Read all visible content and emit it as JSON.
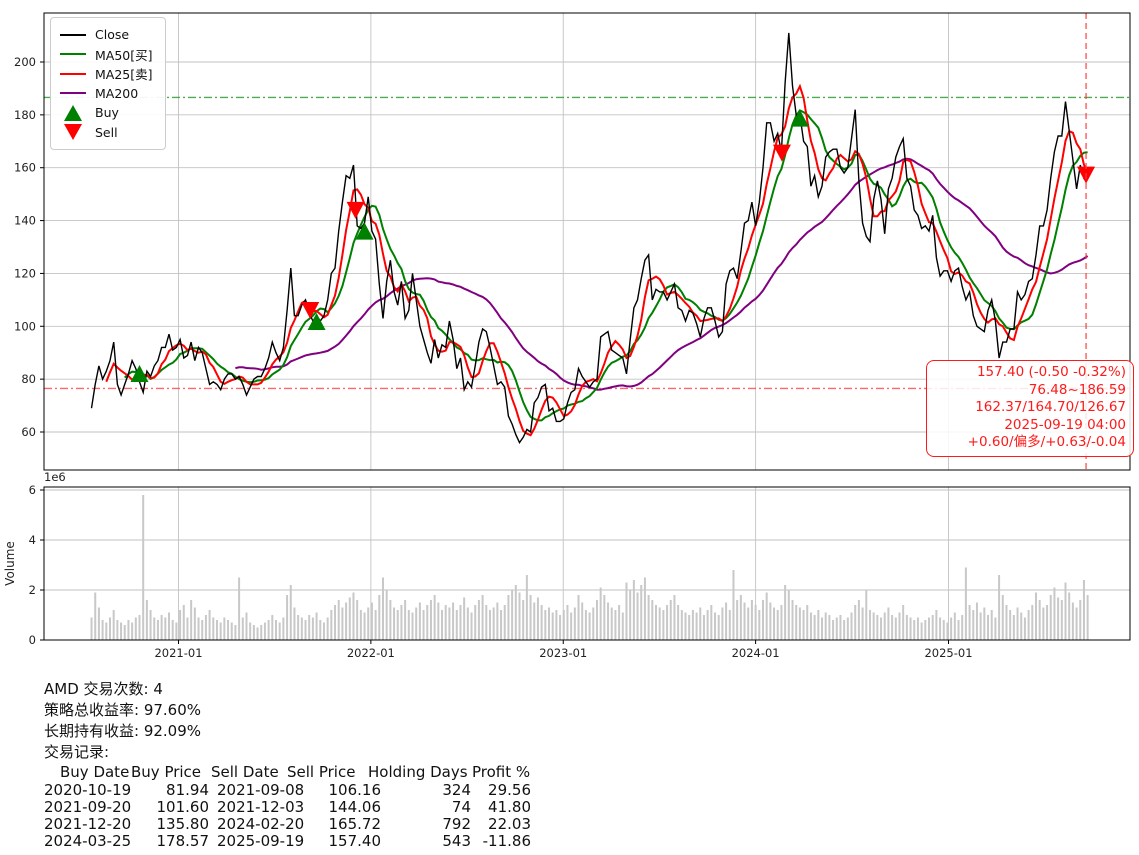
{
  "chart_data": {
    "type": "line",
    "symbol": "AMD",
    "series_start_date": "2020-07-20",
    "interval_days": 7,
    "close": [
      69,
      78,
      85,
      80,
      83,
      87,
      94,
      78,
      74,
      78,
      82,
      87,
      84,
      79,
      75,
      83,
      81,
      85,
      87,
      92,
      92,
      97,
      91,
      92,
      95,
      88,
      89,
      94,
      87,
      92,
      90,
      84,
      78,
      79,
      78,
      76,
      80,
      82,
      82,
      80,
      81,
      78,
      74,
      77,
      80,
      81,
      81,
      84,
      88,
      94,
      90,
      87,
      92,
      106,
      122,
      104,
      104,
      108,
      110,
      105,
      102,
      104,
      102,
      104,
      110,
      120,
      122,
      136,
      147,
      157,
      156,
      161,
      138,
      137,
      139,
      149,
      136,
      133,
      116,
      103,
      117,
      125,
      113,
      108,
      117,
      103,
      106,
      120,
      110,
      100,
      95,
      90,
      86,
      95,
      88,
      93,
      92,
      102,
      95,
      84,
      88,
      76,
      79,
      77,
      85,
      94,
      99,
      98,
      92,
      85,
      78,
      79,
      77,
      66,
      63,
      59,
      56,
      58,
      61,
      60,
      71,
      73,
      77,
      78,
      68,
      69,
      64,
      64,
      65,
      71,
      75,
      76,
      84,
      81,
      79,
      77,
      79,
      80,
      96,
      97,
      98,
      91,
      90,
      89,
      88,
      82,
      95,
      107,
      110,
      118,
      125,
      127,
      110,
      114,
      113,
      113,
      110,
      113,
      116,
      107,
      106,
      102,
      106,
      105,
      101,
      96,
      103,
      107,
      107,
      102,
      96,
      98,
      116,
      121,
      122,
      118,
      128,
      139,
      140,
      147,
      138,
      147,
      160,
      177,
      177,
      170,
      173,
      166,
      192,
      211,
      191,
      180,
      180,
      170,
      168,
      153,
      157,
      149,
      153,
      164,
      166,
      167,
      167,
      160,
      158,
      160,
      171,
      182,
      155,
      139,
      134,
      132,
      148,
      155,
      148,
      135,
      152,
      156,
      164,
      168,
      171,
      156,
      153,
      144,
      142,
      137,
      138,
      136,
      142,
      126,
      119,
      121,
      121,
      117,
      121,
      122,
      115,
      110,
      113,
      104,
      100,
      99,
      98,
      106,
      110,
      102,
      88,
      94,
      94,
      99,
      99,
      113,
      110,
      112,
      117,
      118,
      127,
      138,
      138,
      144,
      156,
      166,
      172,
      172,
      185,
      174,
      163,
      152,
      161,
      156,
      157.4
    ],
    "volume_millions": [
      0.9,
      1.9,
      1.3,
      0.8,
      0.7,
      0.9,
      1.2,
      0.8,
      0.7,
      0.6,
      0.8,
      0.7,
      0.9,
      1.0,
      5.8,
      1.6,
      1.2,
      0.9,
      0.8,
      1.0,
      0.9,
      1.1,
      0.8,
      0.7,
      1.2,
      1.4,
      0.9,
      1.6,
      1.3,
      0.9,
      0.8,
      1.0,
      1.2,
      0.9,
      0.8,
      0.7,
      0.9,
      0.8,
      0.7,
      0.6,
      2.5,
      0.9,
      1.1,
      0.7,
      0.6,
      0.5,
      0.6,
      0.7,
      0.8,
      1.0,
      0.8,
      0.7,
      0.9,
      1.8,
      2.2,
      1.3,
      1.0,
      0.9,
      0.8,
      1.0,
      0.9,
      1.1,
      0.8,
      0.7,
      0.9,
      1.2,
      1.4,
      1.6,
      1.3,
      1.5,
      1.7,
      1.9,
      1.6,
      1.2,
      1.1,
      1.3,
      1.5,
      1.2,
      1.8,
      2.5,
      2.0,
      1.6,
      1.3,
      1.2,
      1.4,
      1.6,
      1.2,
      1.1,
      1.3,
      1.5,
      1.2,
      1.4,
      1.6,
      1.8,
      1.5,
      1.2,
      1.4,
      1.3,
      1.5,
      1.2,
      1.4,
      1.7,
      1.3,
      1.1,
      1.4,
      1.6,
      1.8,
      1.4,
      1.2,
      1.3,
      1.5,
      1.2,
      1.4,
      1.8,
      2.0,
      2.2,
      1.9,
      1.6,
      2.6,
      1.8,
      1.5,
      1.7,
      1.4,
      1.2,
      1.3,
      1.1,
      1.2,
      1.0,
      1.2,
      1.4,
      1.1,
      1.3,
      1.8,
      1.5,
      1.2,
      1.1,
      1.3,
      1.6,
      2.1,
      1.8,
      1.5,
      1.3,
      1.2,
      1.4,
      1.1,
      2.3,
      2.0,
      2.4,
      1.9,
      2.2,
      2.5,
      1.8,
      1.6,
      1.4,
      1.3,
      1.2,
      1.4,
      1.6,
      1.8,
      1.4,
      1.2,
      1.1,
      1.0,
      1.2,
      1.1,
      1.3,
      1.0,
      1.2,
      1.4,
      1.1,
      1.0,
      1.3,
      1.5,
      1.2,
      2.8,
      1.6,
      1.8,
      1.5,
      1.3,
      1.6,
      1.4,
      1.2,
      1.6,
      1.9,
      1.5,
      1.3,
      1.2,
      1.4,
      2.2,
      2.0,
      1.6,
      1.4,
      1.3,
      1.2,
      1.4,
      1.1,
      1.0,
      1.2,
      0.9,
      1.1,
      1.0,
      0.8,
      0.9,
      1.0,
      0.8,
      0.9,
      1.1,
      1.4,
      1.6,
      1.3,
      2.0,
      1.2,
      1.1,
      1.0,
      0.9,
      1.1,
      1.3,
      1.0,
      0.9,
      1.1,
      1.4,
      1.0,
      0.9,
      0.8,
      0.9,
      0.7,
      0.8,
      0.9,
      1.0,
      1.2,
      0.9,
      0.8,
      0.7,
      0.9,
      1.1,
      0.8,
      1.0,
      2.9,
      1.4,
      1.2,
      1.5,
      1.1,
      1.3,
      1.0,
      1.2,
      0.9,
      2.6,
      1.8,
      1.4,
      1.2,
      1.0,
      1.3,
      1.1,
      0.9,
      1.2,
      1.4,
      1.9,
      1.6,
      1.3,
      1.4,
      1.8,
      2.1,
      1.7,
      1.6,
      2.3,
      1.9,
      1.5,
      1.3,
      1.6,
      2.4,
      1.8
    ],
    "ma_windows": {
      "MA25": 5,
      "MA50": 10,
      "MA200": 40
    },
    "x_ticks": [
      {
        "label": "2021-01",
        "date": "2021-01-01"
      },
      {
        "label": "2022-01",
        "date": "2022-01-01"
      },
      {
        "label": "2023-01",
        "date": "2023-01-01"
      },
      {
        "label": "2024-01",
        "date": "2024-01-01"
      },
      {
        "label": "2025-01",
        "date": "2025-01-01"
      }
    ],
    "price_axis": {
      "ticks": [
        60,
        80,
        100,
        120,
        140,
        160,
        180,
        200
      ],
      "range": [
        45.6,
        218.5
      ]
    },
    "volume_axis": {
      "ticks": [
        0,
        2,
        4,
        6
      ],
      "offset_label": "1e6",
      "ylabel": "Volume",
      "range": [
        0,
        6
      ]
    },
    "reference_lines": {
      "high": 186.59,
      "low": 76.48,
      "last_date": "2025-09-19"
    },
    "buy_signals": [
      {
        "date": "2020-10-19",
        "price": 81.94
      },
      {
        "date": "2021-09-20",
        "price": 101.6
      },
      {
        "date": "2021-12-20",
        "price": 135.8
      },
      {
        "date": "2024-03-25",
        "price": 178.57
      }
    ],
    "sell_signals": [
      {
        "date": "2021-09-08",
        "price": 106.16
      },
      {
        "date": "2021-12-03",
        "price": 144.06
      },
      {
        "date": "2024-02-20",
        "price": 165.72
      },
      {
        "date": "2025-09-19",
        "price": 157.4
      }
    ],
    "colors": {
      "close": "#000000",
      "ma50": "#008000",
      "ma25": "#ff0000",
      "ma200": "#800080",
      "buy": "#008000",
      "sell": "#ff0000",
      "volume_bar": "#c8c8c8",
      "grid": "#c2c2c2",
      "high_line": "#2e9e2e",
      "low_line": "#ff4d4d",
      "crosshair": "#ff3b3b"
    },
    "legend_position": "upper-left",
    "grid": true
  },
  "legend": {
    "items": [
      {
        "label": "Close",
        "color": "#000000",
        "type": "line"
      },
      {
        "label": "MA50[买]",
        "color": "#008000",
        "type": "line"
      },
      {
        "label": "MA25[卖]",
        "color": "#ff0000",
        "type": "line"
      },
      {
        "label": "MA200",
        "color": "#800080",
        "type": "line"
      },
      {
        "label": "Buy",
        "color": "#008000",
        "type": "triangle-up"
      },
      {
        "label": "Sell",
        "color": "#ff0000",
        "type": "triangle-down"
      }
    ]
  },
  "annotation": {
    "lines": [
      "157.40 (-0.50 -0.32%)",
      "76.48~186.59",
      "162.37/164.70/126.67",
      "2025-09-19 04:00",
      "+0.60/偏多/+0.63/-0.04"
    ],
    "color": "#ff1a1a"
  },
  "summary": {
    "line1": "AMD 交易次数: 4",
    "line2": "策略总收益率: 97.60%",
    "line3": "长期持有收益: 92.09%",
    "line4": "交易记录:"
  },
  "trades": {
    "headers": {
      "buy_date": "Buy Date",
      "buy_price": "Buy Price",
      "sell_date": "Sell Date",
      "sell_price": "Sell Price",
      "holding_days": "Holding Days",
      "profit_pct": "Profit %"
    },
    "rows": [
      {
        "buy_date": "2020-10-19",
        "buy_price": "81.94",
        "sell_date": "2021-09-08",
        "sell_price": "106.16",
        "holding_days": "324",
        "profit_pct": "29.56"
      },
      {
        "buy_date": "2021-09-20",
        "buy_price": "101.60",
        "sell_date": "2021-12-03",
        "sell_price": "144.06",
        "holding_days": "74",
        "profit_pct": "41.80"
      },
      {
        "buy_date": "2021-12-20",
        "buy_price": "135.80",
        "sell_date": "2024-02-20",
        "sell_price": "165.72",
        "holding_days": "792",
        "profit_pct": "22.03"
      },
      {
        "buy_date": "2024-03-25",
        "buy_price": "178.57",
        "sell_date": "2025-09-19",
        "sell_price": "157.40",
        "holding_days": "543",
        "profit_pct": "-11.86"
      }
    ]
  }
}
